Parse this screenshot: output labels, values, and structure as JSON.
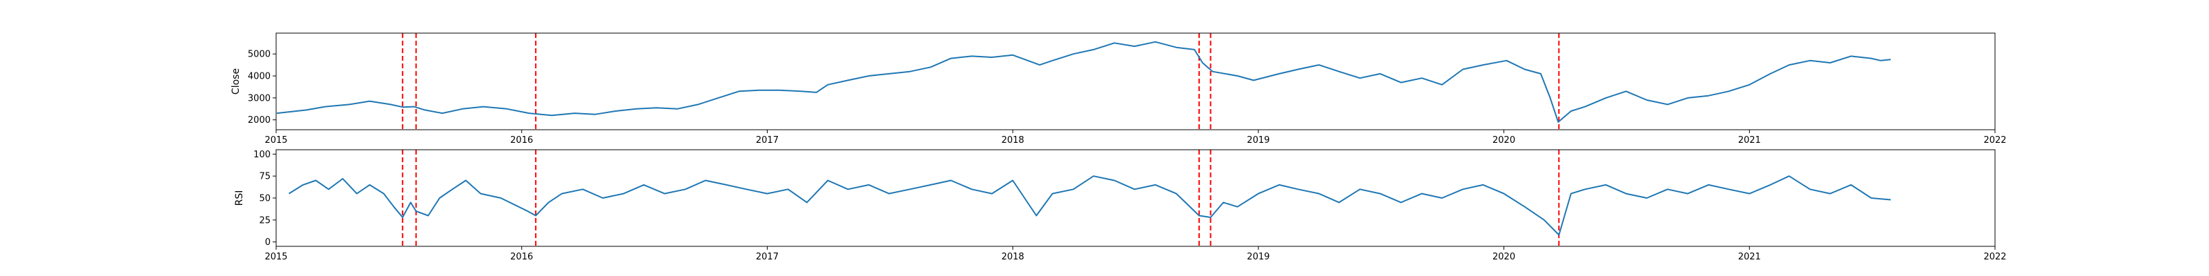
{
  "colors": {
    "series": "#1f77b4",
    "event_line": "#ff0000",
    "axes": "#000000",
    "background": "#ffffff"
  },
  "chart_data": [
    {
      "type": "line",
      "ylabel": "Close",
      "xlim": [
        "2015-01-01",
        "2022-01-01"
      ],
      "ylim": [
        1550,
        5950
      ],
      "x_ticks": [
        "2015",
        "2016",
        "2017",
        "2018",
        "2019",
        "2020",
        "2021",
        "2022"
      ],
      "y_ticks": [
        2000,
        3000,
        4000,
        5000
      ],
      "grid": false,
      "series": [
        {
          "points": [
            [
              "2015-01-02",
              2300
            ],
            [
              "2015-02-15",
              2450
            ],
            [
              "2015-03-15",
              2600
            ],
            [
              "2015-04-20",
              2700
            ],
            [
              "2015-05-20",
              2850
            ],
            [
              "2015-06-20",
              2700
            ],
            [
              "2015-07-08",
              2580
            ],
            [
              "2015-07-25",
              2600
            ],
            [
              "2015-08-10",
              2450
            ],
            [
              "2015-09-05",
              2300
            ],
            [
              "2015-10-05",
              2500
            ],
            [
              "2015-11-05",
              2600
            ],
            [
              "2015-12-10",
              2500
            ],
            [
              "2016-01-12",
              2300
            ],
            [
              "2016-02-15",
              2200
            ],
            [
              "2016-03-20",
              2300
            ],
            [
              "2016-04-20",
              2250
            ],
            [
              "2016-05-20",
              2400
            ],
            [
              "2016-06-20",
              2500
            ],
            [
              "2016-07-20",
              2550
            ],
            [
              "2016-08-20",
              2500
            ],
            [
              "2016-09-20",
              2700
            ],
            [
              "2016-10-20",
              3000
            ],
            [
              "2016-11-20",
              3300
            ],
            [
              "2016-12-20",
              3350
            ],
            [
              "2017-01-20",
              3350
            ],
            [
              "2017-02-20",
              3300
            ],
            [
              "2017-03-15",
              3250
            ],
            [
              "2017-04-01",
              3600
            ],
            [
              "2017-05-01",
              3800
            ],
            [
              "2017-06-01",
              4000
            ],
            [
              "2017-07-01",
              4100
            ],
            [
              "2017-08-01",
              4200
            ],
            [
              "2017-09-01",
              4400
            ],
            [
              "2017-10-01",
              4800
            ],
            [
              "2017-11-01",
              4900
            ],
            [
              "2017-12-01",
              4850
            ],
            [
              "2018-01-01",
              4950
            ],
            [
              "2018-02-10",
              4500
            ],
            [
              "2018-03-01",
              4700
            ],
            [
              "2018-04-01",
              5000
            ],
            [
              "2018-05-01",
              5200
            ],
            [
              "2018-06-01",
              5500
            ],
            [
              "2018-07-01",
              5350
            ],
            [
              "2018-08-01",
              5550
            ],
            [
              "2018-09-01",
              5300
            ],
            [
              "2018-09-28",
              5200
            ],
            [
              "2018-10-10",
              4600
            ],
            [
              "2018-10-25",
              4200
            ],
            [
              "2018-12-01",
              4000
            ],
            [
              "2018-12-25",
              3800
            ],
            [
              "2019-02-01",
              4100
            ],
            [
              "2019-03-01",
              4300
            ],
            [
              "2019-04-01",
              4500
            ],
            [
              "2019-05-01",
              4200
            ],
            [
              "2019-06-01",
              3900
            ],
            [
              "2019-07-01",
              4100
            ],
            [
              "2019-08-01",
              3700
            ],
            [
              "2019-09-01",
              3900
            ],
            [
              "2019-10-01",
              3600
            ],
            [
              "2019-11-01",
              4300
            ],
            [
              "2019-12-01",
              4500
            ],
            [
              "2020-01-05",
              4700
            ],
            [
              "2020-02-01",
              4300
            ],
            [
              "2020-02-25",
              4100
            ],
            [
              "2020-03-10",
              3000
            ],
            [
              "2020-03-22",
              1900
            ],
            [
              "2020-04-10",
              2400
            ],
            [
              "2020-05-01",
              2600
            ],
            [
              "2020-06-01",
              3000
            ],
            [
              "2020-07-01",
              3300
            ],
            [
              "2020-08-01",
              2900
            ],
            [
              "2020-09-01",
              2700
            ],
            [
              "2020-10-01",
              3000
            ],
            [
              "2020-11-01",
              3100
            ],
            [
              "2020-12-01",
              3300
            ],
            [
              "2021-01-01",
              3600
            ],
            [
              "2021-02-01",
              4100
            ],
            [
              "2021-03-01",
              4500
            ],
            [
              "2021-04-01",
              4700
            ],
            [
              "2021-05-01",
              4600
            ],
            [
              "2021-06-01",
              4900
            ],
            [
              "2021-07-01",
              4800
            ],
            [
              "2021-07-15",
              4700
            ],
            [
              "2021-07-30",
              4750
            ]
          ]
        }
      ],
      "event_lines": [
        "2015-07-08",
        "2015-07-28",
        "2016-01-22",
        "2018-10-05",
        "2018-10-22",
        "2020-03-23"
      ]
    },
    {
      "type": "line",
      "ylabel": "RSI",
      "xlim": [
        "2015-01-01",
        "2022-01-01"
      ],
      "ylim": [
        -5,
        105
      ],
      "x_ticks": [
        "2015",
        "2016",
        "2017",
        "2018",
        "2019",
        "2020",
        "2021",
        "2022"
      ],
      "y_ticks": [
        0,
        25,
        50,
        75,
        100
      ],
      "grid": false,
      "series": [
        {
          "points": [
            [
              "2015-01-20",
              55
            ],
            [
              "2015-02-10",
              65
            ],
            [
              "2015-03-01",
              70
            ],
            [
              "2015-03-20",
              60
            ],
            [
              "2015-04-10",
              72
            ],
            [
              "2015-05-01",
              55
            ],
            [
              "2015-05-20",
              65
            ],
            [
              "2015-06-10",
              55
            ],
            [
              "2015-06-25",
              40
            ],
            [
              "2015-07-08",
              28
            ],
            [
              "2015-07-20",
              45
            ],
            [
              "2015-07-28",
              35
            ],
            [
              "2015-08-15",
              30
            ],
            [
              "2015-09-01",
              50
            ],
            [
              "2015-09-20",
              60
            ],
            [
              "2015-10-10",
              70
            ],
            [
              "2015-11-01",
              55
            ],
            [
              "2015-12-01",
              50
            ],
            [
              "2016-01-10",
              35
            ],
            [
              "2016-01-22",
              30
            ],
            [
              "2016-02-10",
              45
            ],
            [
              "2016-03-01",
              55
            ],
            [
              "2016-04-01",
              60
            ],
            [
              "2016-05-01",
              50
            ],
            [
              "2016-06-01",
              55
            ],
            [
              "2016-07-01",
              65
            ],
            [
              "2016-08-01",
              55
            ],
            [
              "2016-09-01",
              60
            ],
            [
              "2016-10-01",
              70
            ],
            [
              "2016-11-01",
              65
            ],
            [
              "2016-12-01",
              60
            ],
            [
              "2017-01-01",
              55
            ],
            [
              "2017-02-01",
              60
            ],
            [
              "2017-03-01",
              45
            ],
            [
              "2017-04-01",
              70
            ],
            [
              "2017-05-01",
              60
            ],
            [
              "2017-06-01",
              65
            ],
            [
              "2017-07-01",
              55
            ],
            [
              "2017-08-01",
              60
            ],
            [
              "2017-09-01",
              65
            ],
            [
              "2017-10-01",
              70
            ],
            [
              "2017-11-01",
              60
            ],
            [
              "2017-12-01",
              55
            ],
            [
              "2018-01-01",
              70
            ],
            [
              "2018-02-05",
              30
            ],
            [
              "2018-03-01",
              55
            ],
            [
              "2018-04-01",
              60
            ],
            [
              "2018-05-01",
              75
            ],
            [
              "2018-06-01",
              70
            ],
            [
              "2018-07-01",
              60
            ],
            [
              "2018-08-01",
              65
            ],
            [
              "2018-09-01",
              55
            ],
            [
              "2018-10-05",
              30
            ],
            [
              "2018-10-22",
              28
            ],
            [
              "2018-11-10",
              45
            ],
            [
              "2018-12-01",
              40
            ],
            [
              "2019-01-01",
              55
            ],
            [
              "2019-02-01",
              65
            ],
            [
              "2019-03-01",
              60
            ],
            [
              "2019-04-01",
              55
            ],
            [
              "2019-05-01",
              45
            ],
            [
              "2019-06-01",
              60
            ],
            [
              "2019-07-01",
              55
            ],
            [
              "2019-08-01",
              45
            ],
            [
              "2019-09-01",
              55
            ],
            [
              "2019-10-01",
              50
            ],
            [
              "2019-11-01",
              60
            ],
            [
              "2019-12-01",
              65
            ],
            [
              "2020-01-01",
              55
            ],
            [
              "2020-02-01",
              40
            ],
            [
              "2020-03-01",
              25
            ],
            [
              "2020-03-23",
              8
            ],
            [
              "2020-04-10",
              55
            ],
            [
              "2020-05-01",
              60
            ],
            [
              "2020-06-01",
              65
            ],
            [
              "2020-07-01",
              55
            ],
            [
              "2020-08-01",
              50
            ],
            [
              "2020-09-01",
              60
            ],
            [
              "2020-10-01",
              55
            ],
            [
              "2020-11-01",
              65
            ],
            [
              "2020-12-01",
              60
            ],
            [
              "2021-01-01",
              55
            ],
            [
              "2021-02-01",
              65
            ],
            [
              "2021-03-01",
              75
            ],
            [
              "2021-04-01",
              60
            ],
            [
              "2021-05-01",
              55
            ],
            [
              "2021-06-01",
              65
            ],
            [
              "2021-07-01",
              50
            ],
            [
              "2021-07-30",
              48
            ]
          ]
        }
      ],
      "event_lines": [
        "2015-07-08",
        "2015-07-28",
        "2016-01-22",
        "2018-10-05",
        "2018-10-22",
        "2020-03-23"
      ]
    }
  ]
}
